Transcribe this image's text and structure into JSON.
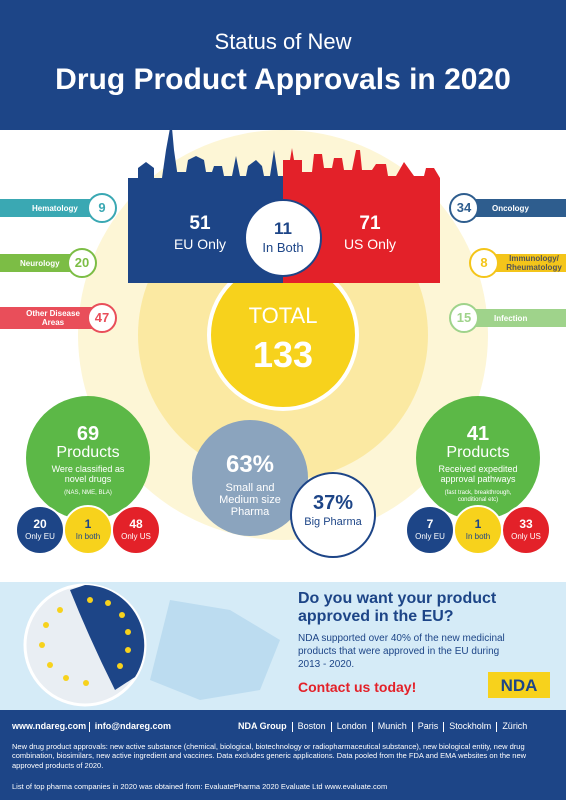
{
  "header": {
    "line1": "Status of New",
    "line2": "Drug Product Approvals in 2020"
  },
  "split": {
    "eu": {
      "value": 51,
      "label": "EU Only"
    },
    "both": {
      "value": 11,
      "label": "In Both"
    },
    "us": {
      "value": 71,
      "label": "US Only"
    }
  },
  "total": {
    "label": "TOTAL",
    "value": 133
  },
  "areas": {
    "left": [
      {
        "name": "Hematology",
        "value": 9
      },
      {
        "name": "Neurology",
        "value": 20
      },
      {
        "name": "Other Disease Areas",
        "value": 47
      }
    ],
    "right": [
      {
        "name": "Oncology",
        "value": 34
      },
      {
        "name": "Immunology/ Rheumatology",
        "value": 8
      },
      {
        "name": "Infection",
        "value": 15
      }
    ]
  },
  "novel": {
    "count": 69,
    "unit": "Products",
    "desc": "Were classified as novel drugs",
    "note": "(NAS, NME, BLA)",
    "breakdown": [
      {
        "value": 20,
        "label": "Only EU"
      },
      {
        "value": 1,
        "label": "In both"
      },
      {
        "value": 48,
        "label": "Only US"
      }
    ]
  },
  "expedited": {
    "count": 41,
    "unit": "Products",
    "desc": "Received expedited approval pathways",
    "note": "(fast track, breakthrough, conditional etc)",
    "breakdown": [
      {
        "value": 7,
        "label": "Only EU"
      },
      {
        "value": 1,
        "label": "In both"
      },
      {
        "value": 33,
        "label": "Only US"
      }
    ]
  },
  "pharma": {
    "small": {
      "value": "63%",
      "label": "Small and Medium size Pharma"
    },
    "big": {
      "value": "37%",
      "label": "Big Pharma"
    }
  },
  "cta": {
    "question": "Do you want your product approved in the EU?",
    "body": "NDA supported over 40% of the new medicinal products that were approved in the EU during 2013 - 2020.",
    "action": "Contact us today!",
    "logo": "NDA"
  },
  "footer": {
    "contacts": [
      "www.ndareg.com",
      "info@ndareg.com"
    ],
    "group": "NDA Group",
    "offices": [
      "Boston",
      "London",
      "Munich",
      "Paris",
      "Stockholm",
      "Zürich"
    ],
    "note": "New drug product approvals: new active substance (chemical, biological, biotechnology or radiopharmaceutical substance), new biological entity, new drug combination, biosimilars, new active ingredient and vaccines. Data excludes generic applications. Data pooled from the FDA and EMA websites on the new approved products of 2020.",
    "source": "List of top pharma companies in 2020 was obtained from: EvaluatePharma 2020 Evaluate Ltd www.evaluate.com"
  }
}
